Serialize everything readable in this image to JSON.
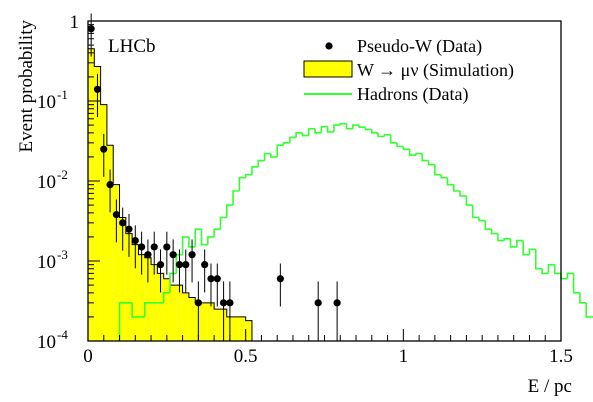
{
  "chart_data": {
    "type": "histogram",
    "experiment_label": "LHCb",
    "xlabel": "E / pc",
    "ylabel": "Event probability",
    "xlim": [
      0,
      1.5
    ],
    "ylim": [
      0.0001,
      1
    ],
    "yscale": "log",
    "x_ticks": [
      {
        "value": 0,
        "label": "0"
      },
      {
        "value": 0.5,
        "label": "0.5"
      },
      {
        "value": 1,
        "label": "1"
      },
      {
        "value": 1.5,
        "label": "1.5"
      }
    ],
    "y_ticks": [
      {
        "value": 1,
        "base": "1",
        "exp": ""
      },
      {
        "value": 0.1,
        "base": "10",
        "exp": "-1"
      },
      {
        "value": 0.01,
        "base": "10",
        "exp": "-2"
      },
      {
        "value": 0.001,
        "base": "10",
        "exp": "-3"
      },
      {
        "value": 0.0001,
        "base": "10",
        "exp": "-4"
      }
    ],
    "legend": {
      "position": "top-right",
      "entries": [
        {
          "label": "Pseudo-W (Data)",
          "style": "marker"
        },
        {
          "label": "W → μν (Simulation)",
          "style": "filled"
        },
        {
          "label": "Hadrons (Data)",
          "style": "line"
        }
      ]
    },
    "colors": {
      "simulation_fill": "#ffff00",
      "hadrons_line": "#33ff33",
      "data_marker": "#000000"
    },
    "bin_width": 0.02,
    "series": [
      {
        "name": "W → μν (Simulation)",
        "style": "filled-histogram",
        "bin_start": 0,
        "values": [
          0.45,
          0.27,
          0.09,
          0.028,
          0.009,
          0.0035,
          0.0022,
          0.0016,
          0.0012,
          0.0011,
          0.0009,
          0.0007,
          0.0006,
          0.0005,
          0.0005,
          0.0004,
          0.00035,
          0.0003,
          0.0003,
          0.0003,
          0.00025,
          0.00025,
          0.0002,
          0.0002,
          0.0002,
          0.00018
        ]
      },
      {
        "name": "Hadrons (Data)",
        "style": "step-line",
        "bin_start": 0.1,
        "values": [
          0.0003,
          0.0003,
          0.0002,
          0.0002,
          0.0003,
          0.0003,
          0.0003,
          0.0004,
          0.0007,
          0.0012,
          0.002,
          0.0015,
          0.0025,
          0.0016,
          0.002,
          0.0025,
          0.0035,
          0.005,
          0.0075,
          0.011,
          0.012,
          0.015,
          0.018,
          0.022,
          0.02,
          0.028,
          0.03,
          0.035,
          0.04,
          0.037,
          0.045,
          0.04,
          0.048,
          0.041,
          0.05,
          0.052,
          0.045,
          0.05,
          0.047,
          0.044,
          0.04,
          0.036,
          0.038,
          0.03,
          0.027,
          0.025,
          0.021,
          0.022,
          0.018,
          0.016,
          0.012,
          0.011,
          0.009,
          0.0075,
          0.0065,
          0.005,
          0.0035,
          0.0032,
          0.0025,
          0.0022,
          0.0018,
          0.0019,
          0.0015,
          0.0018,
          0.0012,
          0.0014,
          0.0008,
          0.0007,
          0.0009,
          0.0007,
          0.0006,
          0.0007,
          0.0004,
          0.0003,
          0.0002,
          0.0002,
          0.0007,
          0.0003,
          0.0007,
          0.0005
        ]
      },
      {
        "name": "Pseudo-W (Data)",
        "style": "markers-with-errors",
        "points": [
          {
            "x": 0.01,
            "y": 0.8
          },
          {
            "x": 0.03,
            "y": 0.14
          },
          {
            "x": 0.05,
            "y": 0.025
          },
          {
            "x": 0.07,
            "y": 0.009
          },
          {
            "x": 0.09,
            "y": 0.0038
          },
          {
            "x": 0.11,
            "y": 0.003
          },
          {
            "x": 0.13,
            "y": 0.0025
          },
          {
            "x": 0.15,
            "y": 0.0018
          },
          {
            "x": 0.17,
            "y": 0.0015
          },
          {
            "x": 0.19,
            "y": 0.0012
          },
          {
            "x": 0.21,
            "y": 0.0015
          },
          {
            "x": 0.23,
            "y": 0.0009
          },
          {
            "x": 0.25,
            "y": 0.0015
          },
          {
            "x": 0.27,
            "y": 0.0012
          },
          {
            "x": 0.29,
            "y": 0.0009
          },
          {
            "x": 0.31,
            "y": 0.0009
          },
          {
            "x": 0.33,
            "y": 0.0012
          },
          {
            "x": 0.35,
            "y": 0.0003
          },
          {
            "x": 0.37,
            "y": 0.0009
          },
          {
            "x": 0.39,
            "y": 0.0006
          },
          {
            "x": 0.41,
            "y": 0.0006
          },
          {
            "x": 0.43,
            "y": 0.0003
          },
          {
            "x": 0.45,
            "y": 0.0003
          },
          {
            "x": 0.61,
            "y": 0.0006
          },
          {
            "x": 0.73,
            "y": 0.0003
          },
          {
            "x": 0.79,
            "y": 0.0003
          }
        ]
      }
    ]
  }
}
